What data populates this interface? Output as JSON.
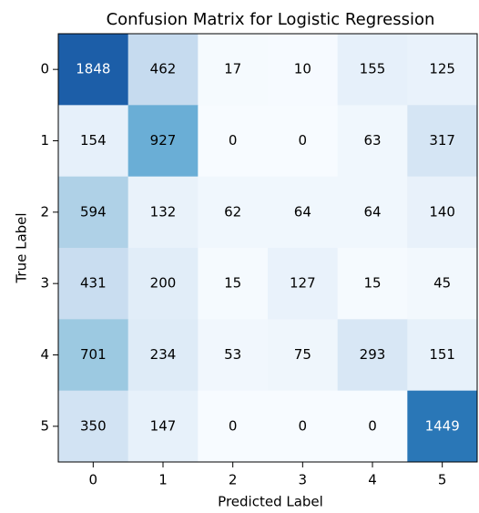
{
  "chart_data": {
    "type": "heatmap",
    "title": "Confusion Matrix for Logistic Regression",
    "xlabel": "Predicted Label",
    "ylabel": "True Label",
    "x_categories": [
      "0",
      "1",
      "2",
      "3",
      "4",
      "5"
    ],
    "y_categories": [
      "0",
      "1",
      "2",
      "3",
      "4",
      "5"
    ],
    "values": [
      [
        1848,
        462,
        17,
        10,
        155,
        125
      ],
      [
        154,
        927,
        0,
        0,
        63,
        317
      ],
      [
        594,
        132,
        62,
        64,
        64,
        140
      ],
      [
        431,
        200,
        15,
        127,
        15,
        45
      ],
      [
        701,
        234,
        53,
        75,
        293,
        151
      ],
      [
        350,
        147,
        0,
        0,
        0,
        1449
      ]
    ],
    "colormap": "Blues"
  }
}
